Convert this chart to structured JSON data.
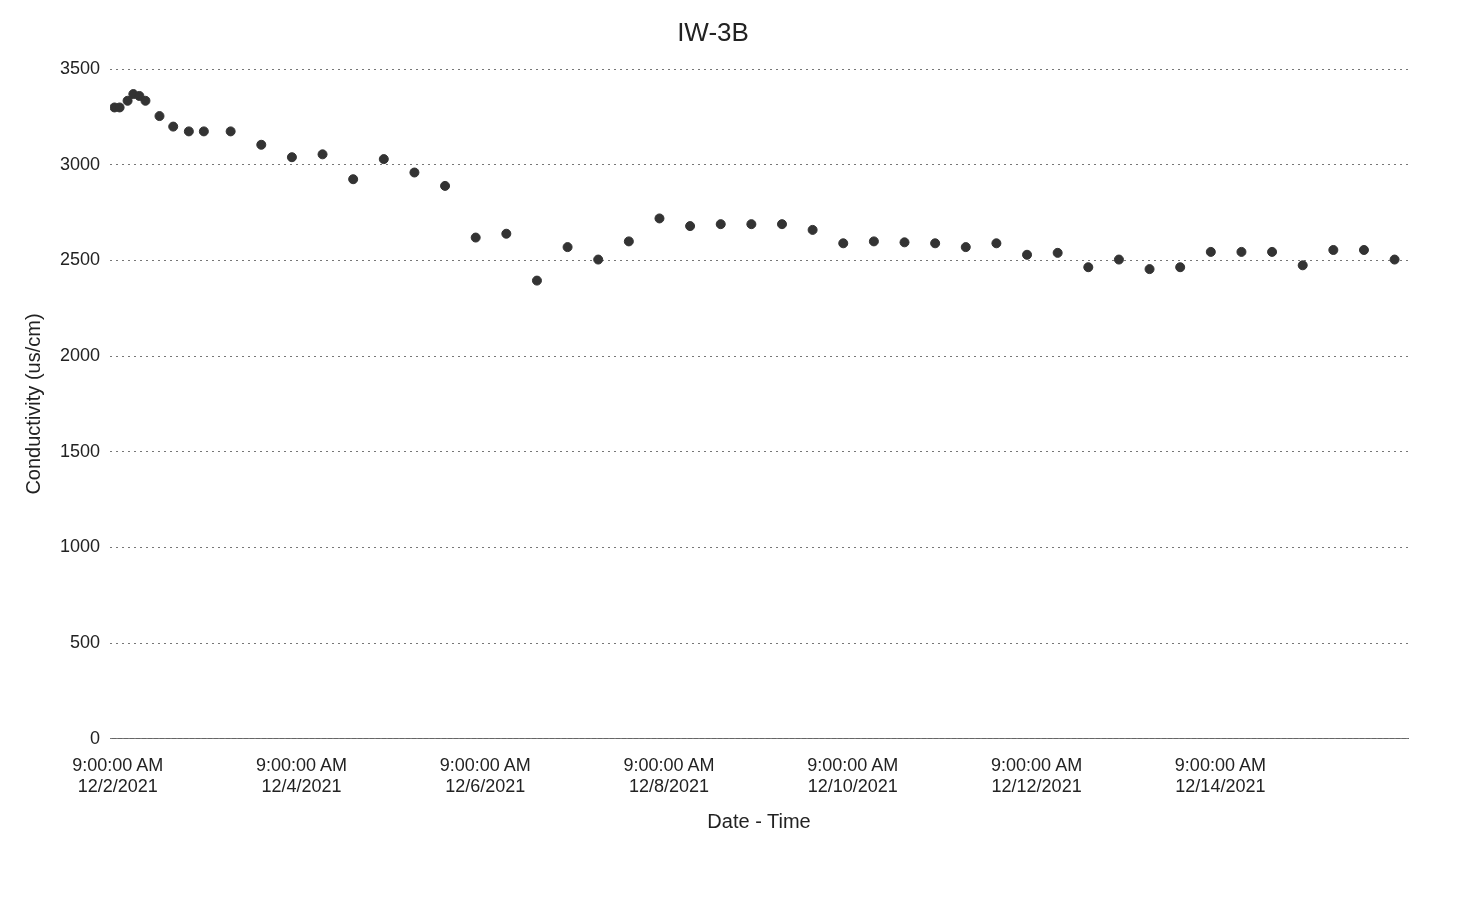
{
  "chart_data": {
    "type": "scatter",
    "title": "IW-3B",
    "xlabel": "Date - Time",
    "ylabel": "Conductivity (us/cm)",
    "x": [
      "2021-12-02T08:10",
      "2021-12-02T09:30",
      "2021-12-02T11:35",
      "2021-12-02T13:05",
      "2021-12-02T14:40",
      "2021-12-02T16:15",
      "2021-12-02T19:55",
      "2021-12-02T23:30",
      "2021-12-03T03:35",
      "2021-12-03T07:30",
      "2021-12-03T14:30",
      "2021-12-03T22:30",
      "2021-12-04T06:30",
      "2021-12-04T14:30",
      "2021-12-04T22:30",
      "2021-12-05T06:30",
      "2021-12-05T14:30",
      "2021-12-05T22:30",
      "2021-12-06T06:30",
      "2021-12-06T14:30",
      "2021-12-06T22:30",
      "2021-12-07T06:30",
      "2021-12-07T14:30",
      "2021-12-07T22:30",
      "2021-12-08T06:30",
      "2021-12-08T14:30",
      "2021-12-08T22:30",
      "2021-12-09T06:30",
      "2021-12-09T14:30",
      "2021-12-09T22:30",
      "2021-12-10T06:30",
      "2021-12-10T14:30",
      "2021-12-10T22:30",
      "2021-12-11T06:30",
      "2021-12-11T14:30",
      "2021-12-11T22:30",
      "2021-12-12T06:30",
      "2021-12-12T14:30",
      "2021-12-12T22:30",
      "2021-12-13T06:30",
      "2021-12-13T14:30",
      "2021-12-13T22:30",
      "2021-12-14T06:30",
      "2021-12-14T14:30",
      "2021-12-14T22:30",
      "2021-12-15T06:30",
      "2021-12-15T14:30",
      "2021-12-15T22:30",
      "2021-12-16T06:30"
    ],
    "values": [
      3300,
      3300,
      3335,
      3370,
      3360,
      3335,
      3255,
      3200,
      3175,
      3175,
      3175,
      3105,
      3040,
      3055,
      2925,
      3030,
      2960,
      2890,
      2620,
      2640,
      2395,
      2570,
      2505,
      2600,
      2720,
      2680,
      2690,
      2690,
      2690,
      2660,
      2590,
      2600,
      2595,
      2590,
      2570,
      2590,
      2530,
      2540,
      2465,
      2505,
      2455,
      2465,
      2545,
      2545,
      2545,
      2475,
      2555,
      2555,
      2505
    ],
    "color": "#333333",
    "marker": "circle",
    "xlim": [
      "2021-12-02T07:00",
      "2021-12-16T10:00"
    ],
    "xticks": [
      {
        "value": "2021-12-02T09:00",
        "label": "9:00:00 AM\n12/2/2021"
      },
      {
        "value": "2021-12-04T09:00",
        "label": "9:00:00 AM\n12/4/2021"
      },
      {
        "value": "2021-12-06T09:00",
        "label": "9:00:00 AM\n12/6/2021"
      },
      {
        "value": "2021-12-08T09:00",
        "label": "9:00:00 AM\n12/8/2021"
      },
      {
        "value": "2021-12-10T09:00",
        "label": "9:00:00 AM\n12/10/2021"
      },
      {
        "value": "2021-12-12T09:00",
        "label": "9:00:00 AM\n12/12/2021"
      },
      {
        "value": "2021-12-14T09:00",
        "label": "9:00:00 AM\n12/14/2021"
      }
    ],
    "ylim": [
      0,
      3500
    ],
    "yticks": [
      0,
      500,
      1000,
      1500,
      2000,
      2500,
      3000,
      3500
    ],
    "grid": "y",
    "line_style": "dotted",
    "legend": false
  }
}
